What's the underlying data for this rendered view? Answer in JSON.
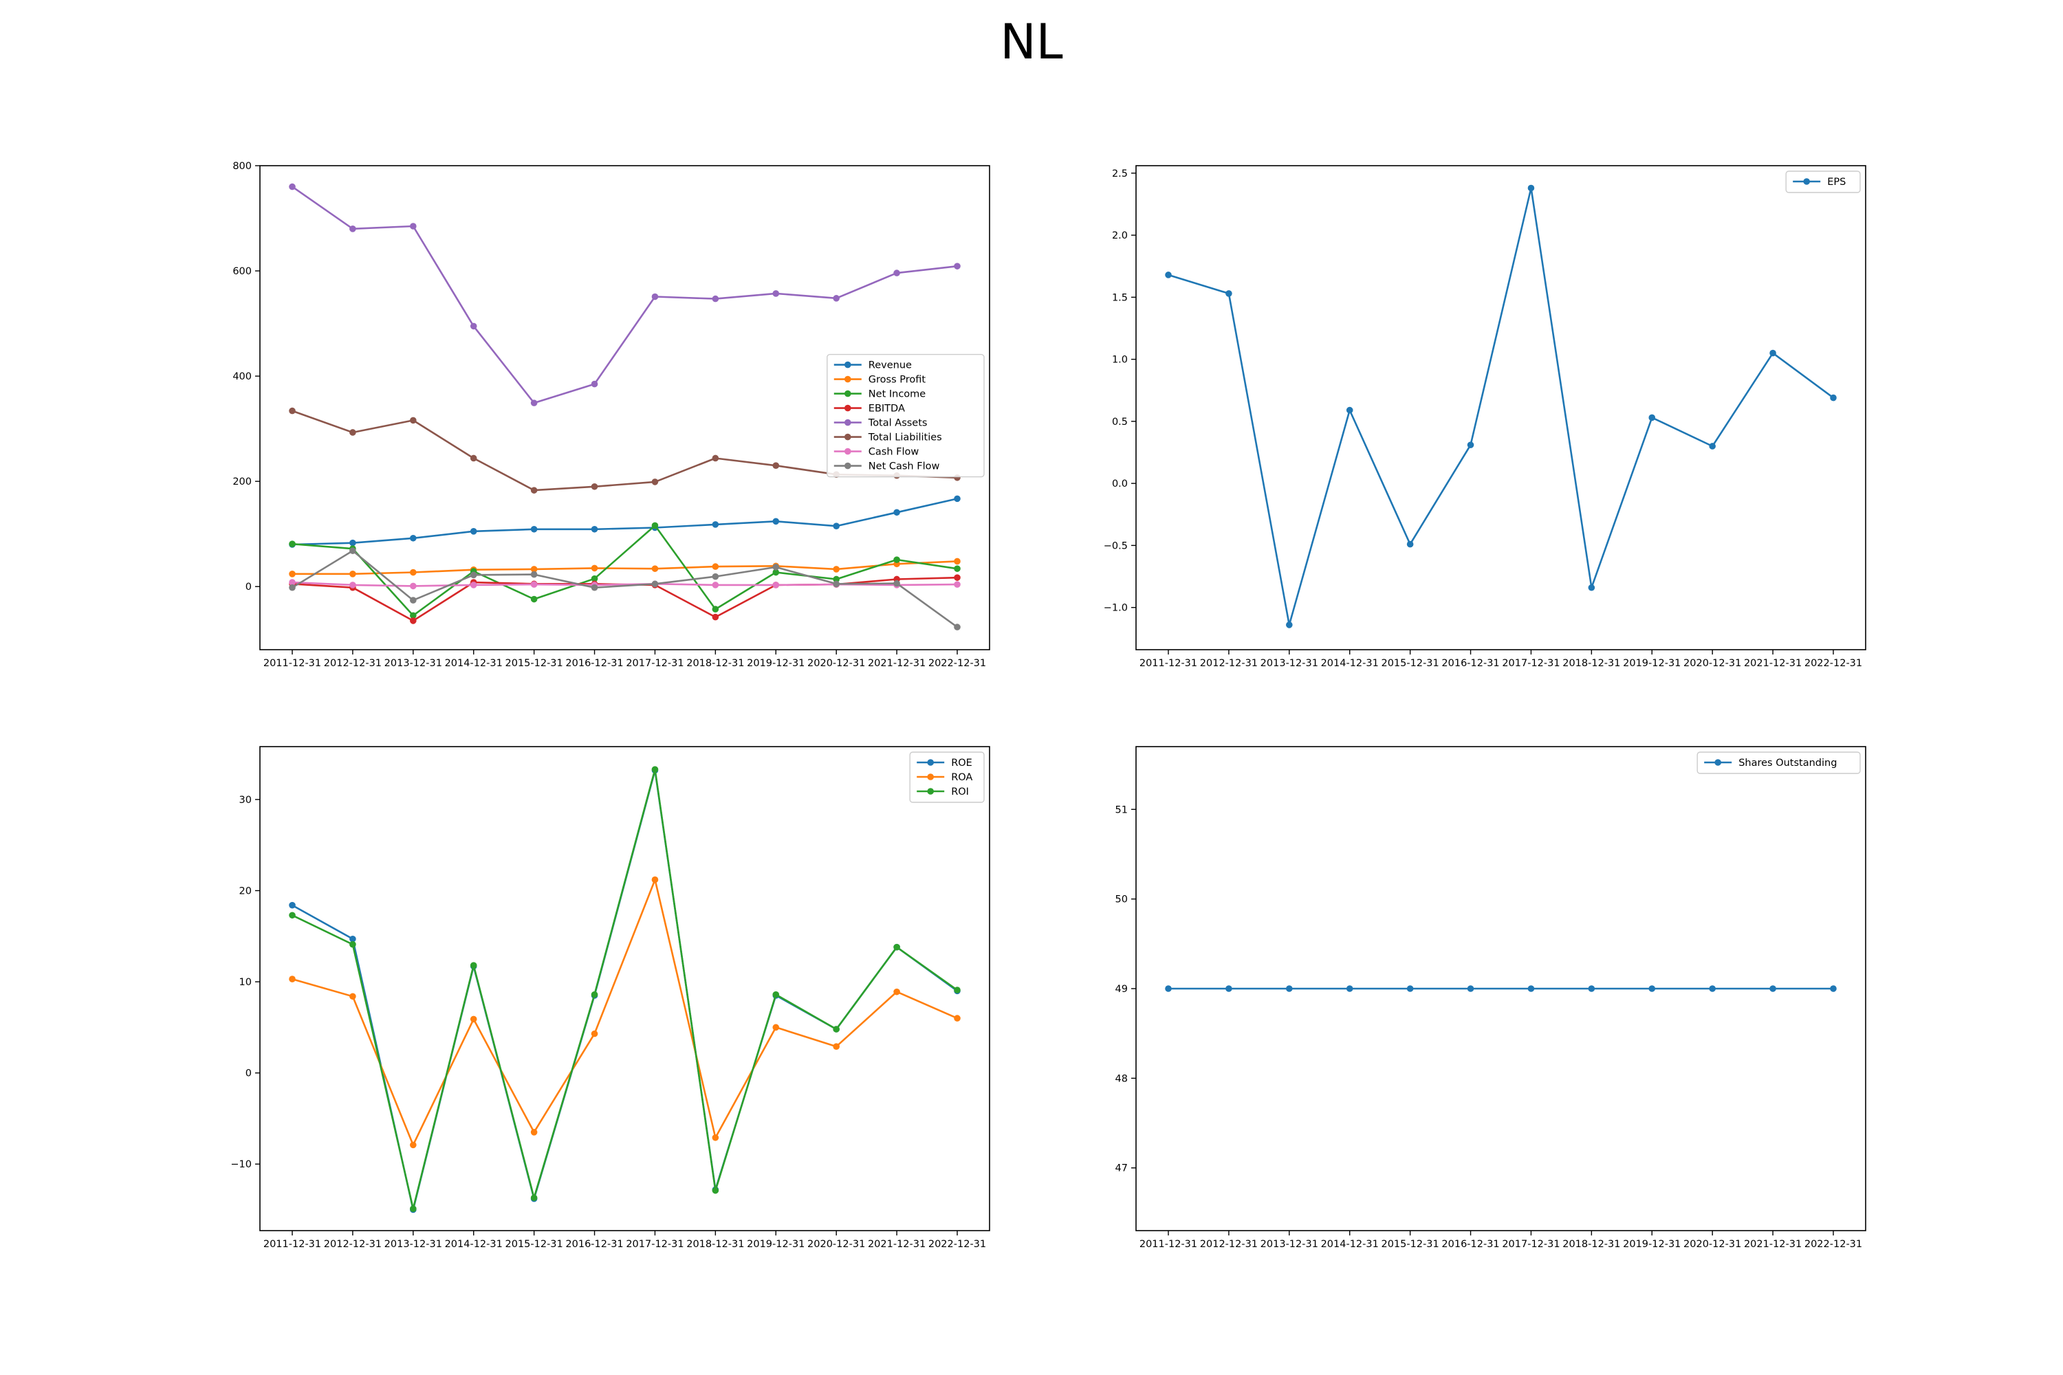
{
  "title": "NL",
  "chart_data": [
    {
      "type": "line",
      "title": "",
      "xlabel": "",
      "ylabel": "",
      "categories": [
        "2011-12-31",
        "2012-12-31",
        "2013-12-31",
        "2014-12-31",
        "2015-12-31",
        "2016-12-31",
        "2017-12-31",
        "2018-12-31",
        "2019-12-31",
        "2020-12-31",
        "2021-12-31",
        "2022-12-31"
      ],
      "ylim": [
        -120,
        800
      ],
      "yticks": [
        0,
        200,
        400,
        600,
        800
      ],
      "yticklabels": [
        "0",
        "200",
        "400",
        "600",
        "800"
      ],
      "grid": false,
      "legend": "center-right",
      "series": [
        {
          "name": "Revenue",
          "color": "#1f77b4",
          "values": [
            80,
            83,
            92,
            105,
            109,
            109,
            112,
            118,
            124,
            115,
            141,
            167
          ]
        },
        {
          "name": "Gross Profit",
          "color": "#ff7f0e",
          "values": [
            24,
            24,
            27,
            32,
            33,
            35,
            34,
            38,
            39,
            33,
            43,
            48
          ]
        },
        {
          "name": "Net Income",
          "color": "#2ca02c",
          "values": [
            81,
            72,
            -55,
            29,
            -24,
            15,
            116,
            -43,
            27,
            14,
            51,
            34
          ]
        },
        {
          "name": "EBITDA",
          "color": "#d62728",
          "values": [
            5,
            -2,
            -65,
            8,
            5,
            5,
            3,
            -58,
            3,
            4,
            14,
            17
          ]
        },
        {
          "name": "Total Assets",
          "color": "#9467bd",
          "values": [
            760,
            680,
            685,
            495,
            349,
            385,
            551,
            547,
            557,
            548,
            596,
            609
          ]
        },
        {
          "name": "Total Liabilities",
          "color": "#8c564b",
          "values": [
            334,
            293,
            316,
            244,
            183,
            190,
            199,
            244,
            230,
            213,
            211,
            207
          ]
        },
        {
          "name": "Cash Flow",
          "color": "#e377c2",
          "values": [
            8,
            3,
            1,
            3,
            4,
            3,
            5,
            3,
            3,
            4,
            3,
            4
          ]
        },
        {
          "name": "Net Cash Flow",
          "color": "#7f7f7f",
          "values": [
            -2,
            68,
            -26,
            22,
            23,
            -2,
            5,
            19,
            37,
            5,
            6,
            -77
          ]
        }
      ]
    },
    {
      "type": "line",
      "title": "",
      "xlabel": "",
      "ylabel": "",
      "categories": [
        "2011-12-31",
        "2012-12-31",
        "2013-12-31",
        "2014-12-31",
        "2015-12-31",
        "2016-12-31",
        "2017-12-31",
        "2018-12-31",
        "2019-12-31",
        "2020-12-31",
        "2021-12-31",
        "2022-12-31"
      ],
      "ylim": [
        -1.34,
        2.56
      ],
      "yticks": [
        -1.0,
        -0.5,
        0.0,
        0.5,
        1.0,
        1.5,
        2.0,
        2.5
      ],
      "yticklabels": [
        "−1.0",
        "−0.5",
        "0.0",
        "0.5",
        "1.0",
        "1.5",
        "2.0",
        "2.5"
      ],
      "grid": false,
      "legend": "top-right",
      "series": [
        {
          "name": "EPS",
          "color": "#1f77b4",
          "values": [
            1.68,
            1.53,
            -1.14,
            0.59,
            -0.49,
            0.31,
            2.38,
            -0.84,
            0.53,
            0.3,
            1.05,
            0.69
          ]
        }
      ]
    },
    {
      "type": "line",
      "title": "",
      "xlabel": "",
      "ylabel": "",
      "categories": [
        "2011-12-31",
        "2012-12-31",
        "2013-12-31",
        "2014-12-31",
        "2015-12-31",
        "2016-12-31",
        "2017-12-31",
        "2018-12-31",
        "2019-12-31",
        "2020-12-31",
        "2021-12-31",
        "2022-12-31"
      ],
      "ylim": [
        -17.3,
        35.8
      ],
      "yticks": [
        -10,
        0,
        10,
        20,
        30
      ],
      "yticklabels": [
        "−10",
        "0",
        "10",
        "20",
        "30"
      ],
      "grid": false,
      "legend": "top-right",
      "series": [
        {
          "name": "ROE",
          "color": "#1f77b4",
          "values": [
            18.4,
            14.7,
            -15.0,
            11.7,
            -13.8,
            8.5,
            33.2,
            -12.8,
            8.5,
            4.8,
            13.8,
            9.0
          ]
        },
        {
          "name": "ROA",
          "color": "#ff7f0e",
          "values": [
            10.3,
            8.4,
            -7.9,
            5.9,
            -6.5,
            4.3,
            21.2,
            -7.1,
            5.0,
            2.9,
            8.9,
            6.0
          ]
        },
        {
          "name": "ROI",
          "color": "#2ca02c",
          "values": [
            17.3,
            14.1,
            -14.9,
            11.8,
            -13.7,
            8.6,
            33.3,
            -12.9,
            8.6,
            4.8,
            13.8,
            9.1
          ]
        }
      ]
    },
    {
      "type": "line",
      "title": "",
      "xlabel": "",
      "ylabel": "",
      "categories": [
        "2011-12-31",
        "2012-12-31",
        "2013-12-31",
        "2014-12-31",
        "2015-12-31",
        "2016-12-31",
        "2017-12-31",
        "2018-12-31",
        "2019-12-31",
        "2020-12-31",
        "2021-12-31",
        "2022-12-31"
      ],
      "ylim": [
        46.3,
        51.7
      ],
      "yticks": [
        47,
        48,
        49,
        50,
        51
      ],
      "yticklabels": [
        "47",
        "48",
        "49",
        "50",
        "51"
      ],
      "grid": false,
      "legend": "top-right",
      "series": [
        {
          "name": "Shares Outstanding",
          "color": "#1f77b4",
          "values": [
            49,
            49,
            49,
            49,
            49,
            49,
            49,
            49,
            49,
            49,
            49,
            49
          ]
        }
      ]
    }
  ]
}
